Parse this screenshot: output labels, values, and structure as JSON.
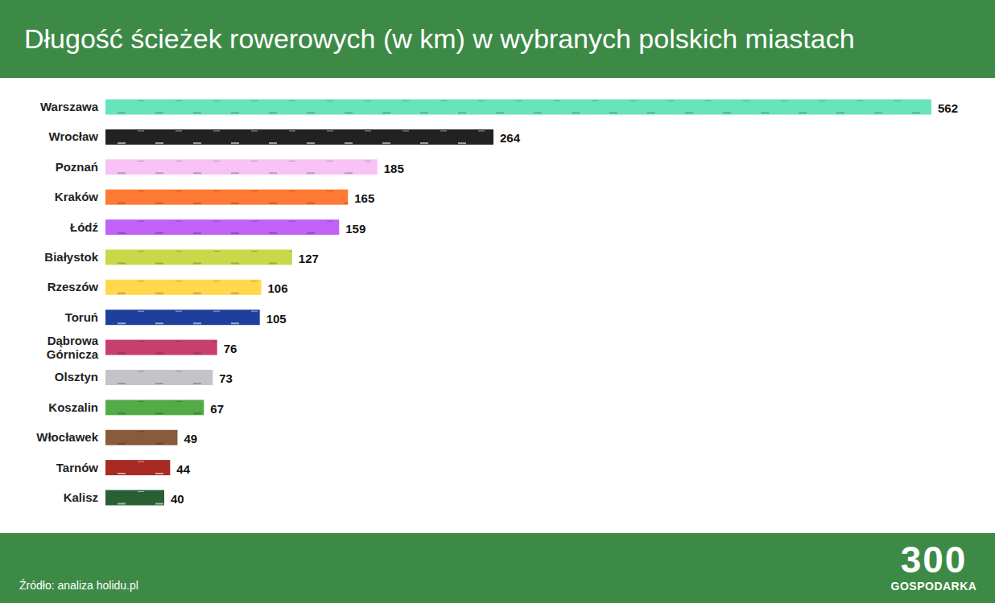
{
  "chart_data": {
    "type": "bar",
    "orientation": "horizontal",
    "title": "Długość ścieżek rowerowych (w km) w wybranych polskich miastach",
    "categories": [
      "Warszawa",
      "Wrocław",
      "Poznań",
      "Kraków",
      "Łódź",
      "Białystok",
      "Rzeszów",
      "Toruń",
      "Dąbrowa Górnicza",
      "Olsztyn",
      "Koszalin",
      "Włocławek",
      "Tarnów",
      "Kalisz"
    ],
    "values": [
      562,
      264,
      185,
      165,
      159,
      127,
      106,
      105,
      76,
      73,
      67,
      49,
      44,
      40
    ],
    "colors": [
      "#67e4bb",
      "#222222",
      "#f8c2f6",
      "#ff7a35",
      "#c062f7",
      "#c9d84a",
      "#ffd84c",
      "#1f3f9c",
      "#c73f6e",
      "#c4c4c8",
      "#52ab46",
      "#8a5a3c",
      "#a82a22",
      "#2a5e34"
    ],
    "xlim": [
      0,
      562
    ],
    "data_labels": true,
    "tick_labels": "y",
    "grid": false,
    "source": "Źródło: analiza holidu.pl",
    "brand": "300",
    "brand_subtitle": "GOSPODARKA"
  }
}
